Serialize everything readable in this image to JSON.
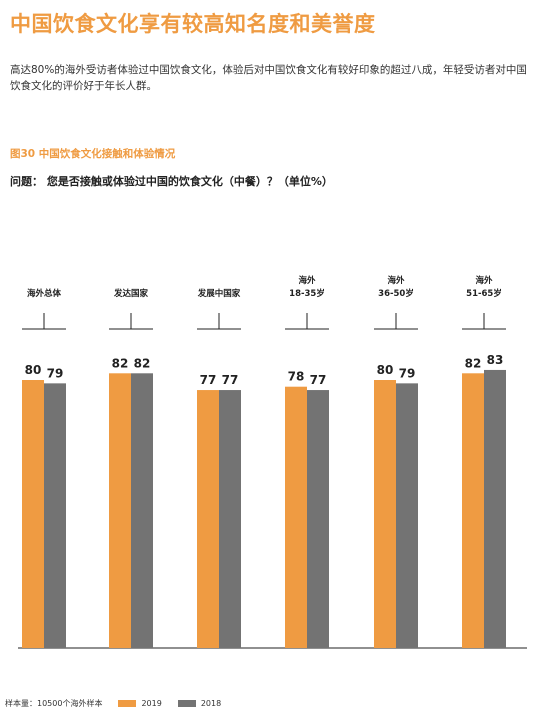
{
  "page": {
    "title": "中国饮食文化享有较高知名度和美誉度",
    "summary": "高达80%的海外受访者体验过中国饮食文化，体验后对中国饮食文化有较好印象的超过八成，年轻受访者对中国饮食文化的评价好于年长人群。",
    "figure_title": "图30  中国饮食文化接触和体验情况",
    "question": "问题：  您是否接触或体验过中国的饮食文化（中餐）？（单位%）",
    "sample_note": "样本量：10500个海外样本"
  },
  "colors": {
    "accent": "#ef9b42",
    "series_2019": "#ef9b42",
    "series_2018": "#737373"
  },
  "chart_data": {
    "type": "bar",
    "categories": [
      [
        "海外总体"
      ],
      [
        "发达国家"
      ],
      [
        "发展中国家"
      ],
      [
        "海外",
        "18-35岁"
      ],
      [
        "海外",
        "36-50岁"
      ],
      [
        "海外",
        "51-65岁"
      ]
    ],
    "series": [
      {
        "name": "2019",
        "values": [
          80,
          82,
          77,
          78,
          80,
          82
        ]
      },
      {
        "name": "2018",
        "values": [
          79,
          82,
          77,
          77,
          79,
          83
        ]
      }
    ],
    "ylim": [
      0,
      100
    ],
    "grid": false,
    "legend": "bottom-left",
    "data_labels": true
  }
}
